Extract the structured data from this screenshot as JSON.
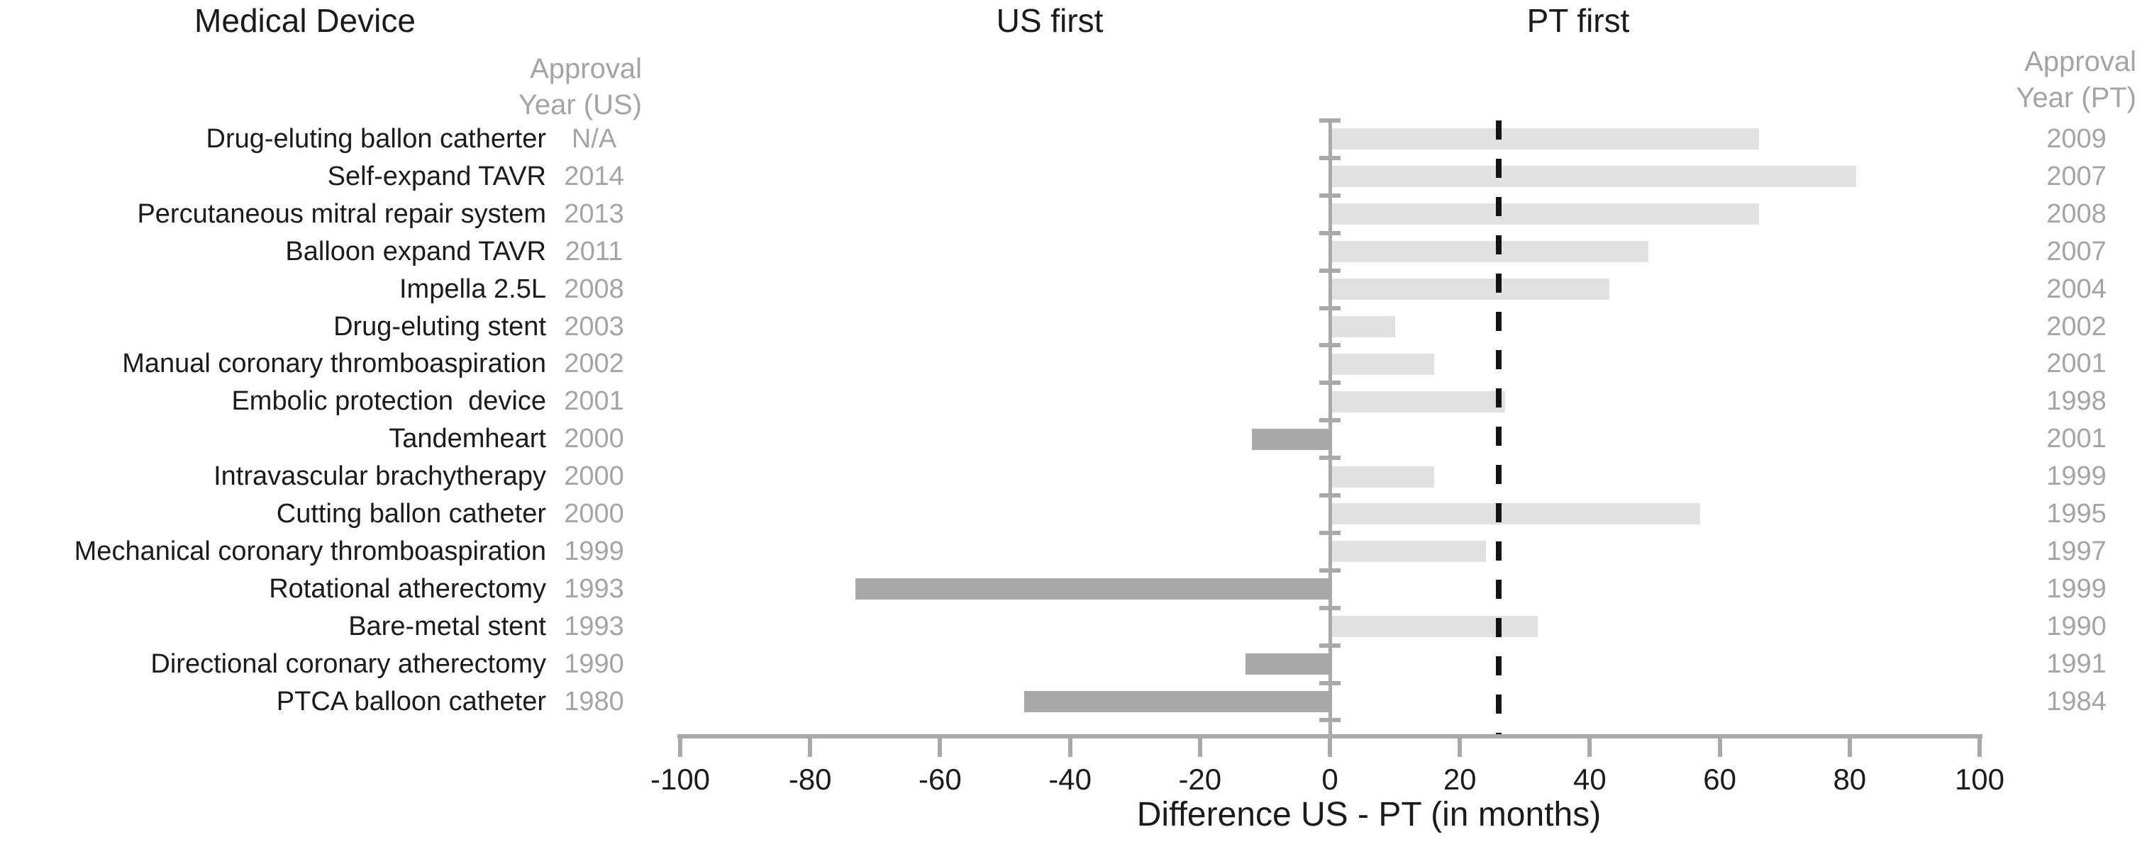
{
  "headers": {
    "device_column_title": "Medical Device",
    "us_first_label": "US first",
    "pt_first_label": "PT first",
    "us_year_column_title": "Approval\nYear (US)",
    "pt_year_column_title": "Approval\nYear (PT)"
  },
  "chart_data": {
    "type": "bar",
    "orientation": "horizontal",
    "categories": [
      "Drug-eluting ballon catherter",
      "Self-expand TAVR",
      "Percutaneous mitral repair system",
      "Balloon expand TAVR",
      "Impella 2.5L",
      "Drug-eluting stent",
      "Manual coronary thromboaspiration",
      "Embolic protection  device",
      "Tandemheart",
      "Intravascular brachytherapy",
      "Cutting ballon catheter",
      "Mechanical coronary thromboaspiration",
      "Rotational atherectomy",
      "Bare-metal stent",
      "Directional coronary atherectomy",
      "PTCA balloon catheter"
    ],
    "us_approval_year": [
      "N/A",
      "2014",
      "2013",
      "2011",
      "2008",
      "2003",
      "2002",
      "2001",
      "2000",
      "2000",
      "2000",
      "1999",
      "1993",
      "1993",
      "1990",
      "1980"
    ],
    "pt_approval_year": [
      "2009",
      "2007",
      "2008",
      "2007",
      "2004",
      "2002",
      "2001",
      "1998",
      "2001",
      "1999",
      "1995",
      "1997",
      "1999",
      "1990",
      "1991",
      "1984"
    ],
    "values": [
      66,
      81,
      66,
      49,
      43,
      10,
      16,
      27,
      -12,
      16,
      57,
      24,
      -73,
      32,
      -13,
      -47
    ],
    "series_name": "Difference US - PT (in months)",
    "dashed_reference_value": 26,
    "xlabel": "Difference US - PT (in months)",
    "xlim": [
      -100,
      100
    ],
    "xticks": [
      -100,
      -80,
      -60,
      -40,
      -20,
      0,
      20,
      40,
      60,
      80,
      100
    ],
    "grid": false,
    "legend": false,
    "colors": {
      "positive_bar": "#dfe1e3",
      "negative_bar": "#a9a9a9",
      "axis": "#a9a9a9",
      "muted_text": "#a3a4a6",
      "text": "#1b1b1b",
      "dashed_line": "#141414"
    }
  }
}
